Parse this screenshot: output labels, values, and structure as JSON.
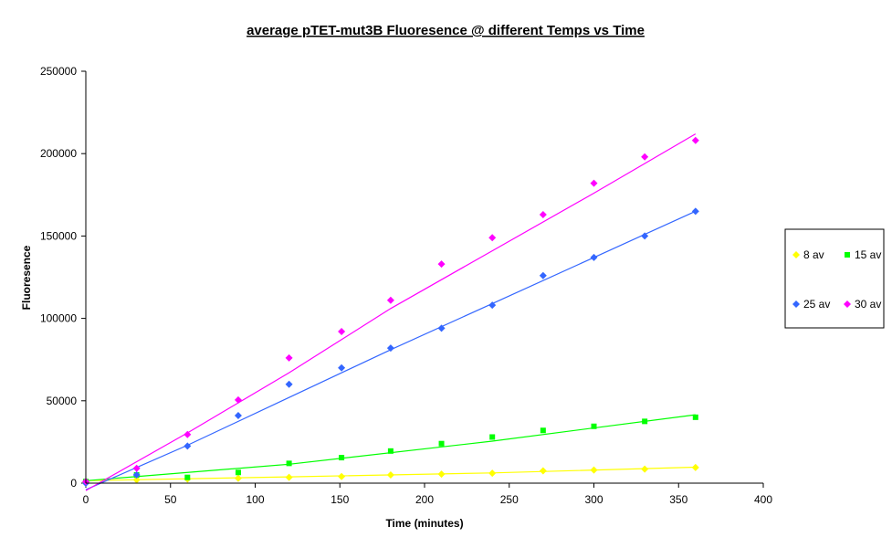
{
  "chart_data": {
    "type": "scatter",
    "title": "average pTET-mut3B Fluoresence @ different Temps vs Time",
    "xlabel": "Time (minutes)",
    "ylabel": "Fluoresence",
    "xlim": [
      0,
      400
    ],
    "ylim": [
      0,
      250000
    ],
    "x_ticks": [
      0,
      50,
      100,
      150,
      200,
      250,
      300,
      350,
      400
    ],
    "y_ticks": [
      0,
      50000,
      100000,
      150000,
      200000,
      250000
    ],
    "x_tick_labels": [
      "0",
      "50",
      "100",
      "150",
      "200",
      "250",
      "300",
      "350",
      "400"
    ],
    "y_tick_labels": [
      "0",
      "50000",
      "100000",
      "150000",
      "200000",
      "250000"
    ],
    "grid": false,
    "legend_position": "right",
    "x": [
      0,
      30,
      60,
      90,
      120,
      151,
      180,
      210,
      240,
      270,
      300,
      330,
      360
    ],
    "series": [
      {
        "name": "8 av",
        "color": "#ffff00",
        "marker": "diamond",
        "values": [
          500,
          2000,
          2500,
          3000,
          3500,
          4000,
          5000,
          5500,
          6000,
          7500,
          8000,
          8500,
          9500
        ],
        "trendline": [
          [
            0,
            1500
          ],
          [
            120,
            3800
          ],
          [
            240,
            6200
          ],
          [
            360,
            9700
          ]
        ]
      },
      {
        "name": "15 av",
        "color": "#00ff00",
        "marker": "square",
        "values": [
          1000,
          5000,
          3500,
          6500,
          12000,
          15500,
          19500,
          24000,
          28000,
          32000,
          34500,
          37500,
          40000
        ],
        "trendline": [
          [
            0,
            1500
          ],
          [
            120,
            11500
          ],
          [
            240,
            25500
          ],
          [
            360,
            41500
          ]
        ]
      },
      {
        "name": "25 av",
        "color": "#3366ff",
        "marker": "diamond",
        "values": [
          0,
          5000,
          22500,
          41000,
          60000,
          70000,
          82000,
          94000,
          108000,
          126000,
          137000,
          150000,
          165000
        ],
        "trendline": [
          [
            0,
            -4000
          ],
          [
            60,
            23000
          ],
          [
            120,
            52000
          ],
          [
            180,
            81000
          ],
          [
            240,
            109000
          ],
          [
            300,
            137000
          ],
          [
            360,
            165000
          ]
        ]
      },
      {
        "name": "30 av",
        "color": "#ff00ff",
        "marker": "diamond",
        "values": [
          1000,
          9000,
          29500,
          50500,
          76000,
          92000,
          111000,
          133000,
          149000,
          163000,
          182000,
          198000,
          208000
        ],
        "trendline": [
          [
            0,
            -4500
          ],
          [
            60,
            30500
          ],
          [
            120,
            67000
          ],
          [
            180,
            106000
          ],
          [
            240,
            141000
          ],
          [
            300,
            176000
          ],
          [
            360,
            212000
          ]
        ]
      }
    ]
  }
}
